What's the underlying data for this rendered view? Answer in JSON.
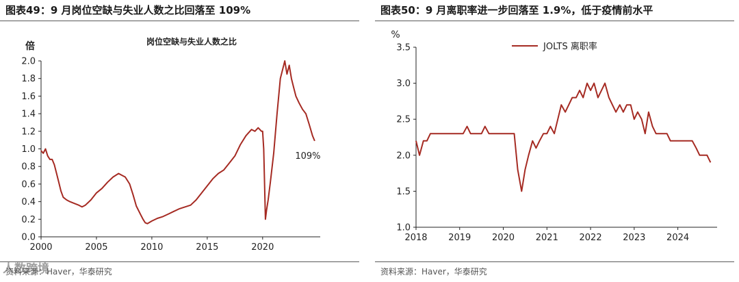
{
  "colors": {
    "line": "#a52a22",
    "axis": "#222222",
    "rule": "#5a5a5a"
  },
  "watermark": "人数跨境",
  "left_panel": {
    "figure_title": "图表49：9 月岗位空缺与失业人数之比回落至 109%",
    "source": "资料来源：Haver，华泰研究"
  },
  "right_panel": {
    "figure_title": "图表50：9 月离职率进一步回落至 1.9%，低于疫情前水平",
    "source": "资料来源：Haver，华泰研究"
  },
  "chart_data": [
    {
      "type": "line",
      "title": "岗位空缺与失业人数之比",
      "ylabel": "倍",
      "xlabel": "",
      "ylim": [
        0.0,
        2.0
      ],
      "xlim": [
        2000.0,
        2025.2
      ],
      "y_ticks": [
        "0.0",
        "0.2",
        "0.4",
        "0.6",
        "0.8",
        "1.0",
        "1.2",
        "1.4",
        "1.6",
        "1.8",
        "2.0"
      ],
      "x_ticks": [
        "2000",
        "2005",
        "2010",
        "2015",
        "2020"
      ],
      "annotation": "109%",
      "legend": "none",
      "series": [
        {
          "x": [
            2000.0,
            2000.2,
            2000.4,
            2000.6,
            2000.8,
            2001.0,
            2001.2,
            2001.4,
            2001.6,
            2001.8,
            2002.0,
            2002.3,
            2002.6,
            2003.0,
            2003.4,
            2003.7,
            2004.0,
            2004.5,
            2005.0,
            2005.5,
            2006.0,
            2006.5,
            2007.0,
            2007.3,
            2007.6,
            2008.0,
            2008.3,
            2008.6,
            2009.0,
            2009.2,
            2009.4,
            2009.6,
            2010.0,
            2010.5,
            2011.0,
            2011.5,
            2012.0,
            2012.5,
            2013.0,
            2013.5,
            2014.0,
            2014.5,
            2015.0,
            2015.5,
            2016.0,
            2016.5,
            2017.0,
            2017.5,
            2018.0,
            2018.5,
            2019.0,
            2019.3,
            2019.6,
            2019.9,
            2020.0,
            2020.1,
            2020.25,
            2020.35,
            2020.5,
            2020.7,
            2021.0,
            2021.3,
            2021.6,
            2021.9,
            2022.0,
            2022.2,
            2022.4,
            2022.6,
            2022.8,
            2023.0,
            2023.3,
            2023.6,
            2023.9,
            2024.2,
            2024.5,
            2024.7
          ],
          "y": [
            0.98,
            0.95,
            1.0,
            0.92,
            0.88,
            0.88,
            0.82,
            0.72,
            0.62,
            0.52,
            0.45,
            0.42,
            0.4,
            0.38,
            0.36,
            0.34,
            0.36,
            0.42,
            0.5,
            0.55,
            0.62,
            0.68,
            0.72,
            0.7,
            0.68,
            0.6,
            0.48,
            0.35,
            0.25,
            0.2,
            0.16,
            0.15,
            0.18,
            0.21,
            0.23,
            0.26,
            0.29,
            0.32,
            0.34,
            0.36,
            0.42,
            0.5,
            0.58,
            0.66,
            0.72,
            0.76,
            0.84,
            0.92,
            1.05,
            1.15,
            1.22,
            1.2,
            1.24,
            1.2,
            1.2,
            1.0,
            0.2,
            0.3,
            0.42,
            0.62,
            0.95,
            1.4,
            1.8,
            1.95,
            2.0,
            1.85,
            1.95,
            1.8,
            1.7,
            1.6,
            1.52,
            1.45,
            1.4,
            1.28,
            1.15,
            1.09
          ]
        }
      ]
    },
    {
      "type": "line",
      "title": "",
      "ylabel": "%",
      "xlabel": "",
      "ylim": [
        1.0,
        3.5
      ],
      "xlim": [
        2018.0,
        2024.9
      ],
      "y_ticks": [
        "1.0",
        "1.5",
        "2.0",
        "2.5",
        "3.0",
        "3.5"
      ],
      "x_ticks": [
        "2018",
        "2019",
        "2020",
        "2021",
        "2022",
        "2023",
        "2024"
      ],
      "legend": "top",
      "series": [
        {
          "name": "JOLTS 离职率",
          "x": [
            2018.0,
            2018.08,
            2018.17,
            2018.25,
            2018.33,
            2018.42,
            2018.5,
            2018.6,
            2018.75,
            2018.9,
            2019.0,
            2019.08,
            2019.17,
            2019.25,
            2019.33,
            2019.42,
            2019.5,
            2019.58,
            2019.67,
            2019.75,
            2019.85,
            2020.0,
            2020.08,
            2020.17,
            2020.25,
            2020.33,
            2020.42,
            2020.5,
            2020.58,
            2020.67,
            2020.75,
            2020.83,
            2020.92,
            2021.0,
            2021.08,
            2021.17,
            2021.25,
            2021.33,
            2021.42,
            2021.5,
            2021.58,
            2021.67,
            2021.75,
            2021.83,
            2021.92,
            2022.0,
            2022.08,
            2022.17,
            2022.25,
            2022.33,
            2022.42,
            2022.5,
            2022.58,
            2022.67,
            2022.75,
            2022.83,
            2022.92,
            2023.0,
            2023.08,
            2023.17,
            2023.25,
            2023.33,
            2023.42,
            2023.5,
            2023.58,
            2023.67,
            2023.75,
            2023.83,
            2023.92,
            2024.0,
            2024.08,
            2024.17,
            2024.25,
            2024.33,
            2024.42,
            2024.5,
            2024.58,
            2024.67,
            2024.75
          ],
          "y": [
            2.2,
            2.0,
            2.2,
            2.2,
            2.3,
            2.3,
            2.3,
            2.3,
            2.3,
            2.3,
            2.3,
            2.3,
            2.4,
            2.3,
            2.3,
            2.3,
            2.3,
            2.4,
            2.3,
            2.3,
            2.3,
            2.3,
            2.3,
            2.3,
            2.3,
            1.8,
            1.5,
            1.8,
            2.0,
            2.2,
            2.1,
            2.2,
            2.3,
            2.3,
            2.4,
            2.3,
            2.5,
            2.7,
            2.6,
            2.7,
            2.8,
            2.8,
            2.9,
            2.8,
            3.0,
            2.9,
            3.0,
            2.8,
            2.9,
            3.0,
            2.8,
            2.7,
            2.6,
            2.7,
            2.6,
            2.7,
            2.7,
            2.5,
            2.6,
            2.5,
            2.3,
            2.6,
            2.4,
            2.3,
            2.3,
            2.3,
            2.3,
            2.2,
            2.2,
            2.2,
            2.2,
            2.2,
            2.2,
            2.2,
            2.1,
            2.0,
            2.0,
            2.0,
            1.9
          ]
        }
      ]
    }
  ]
}
